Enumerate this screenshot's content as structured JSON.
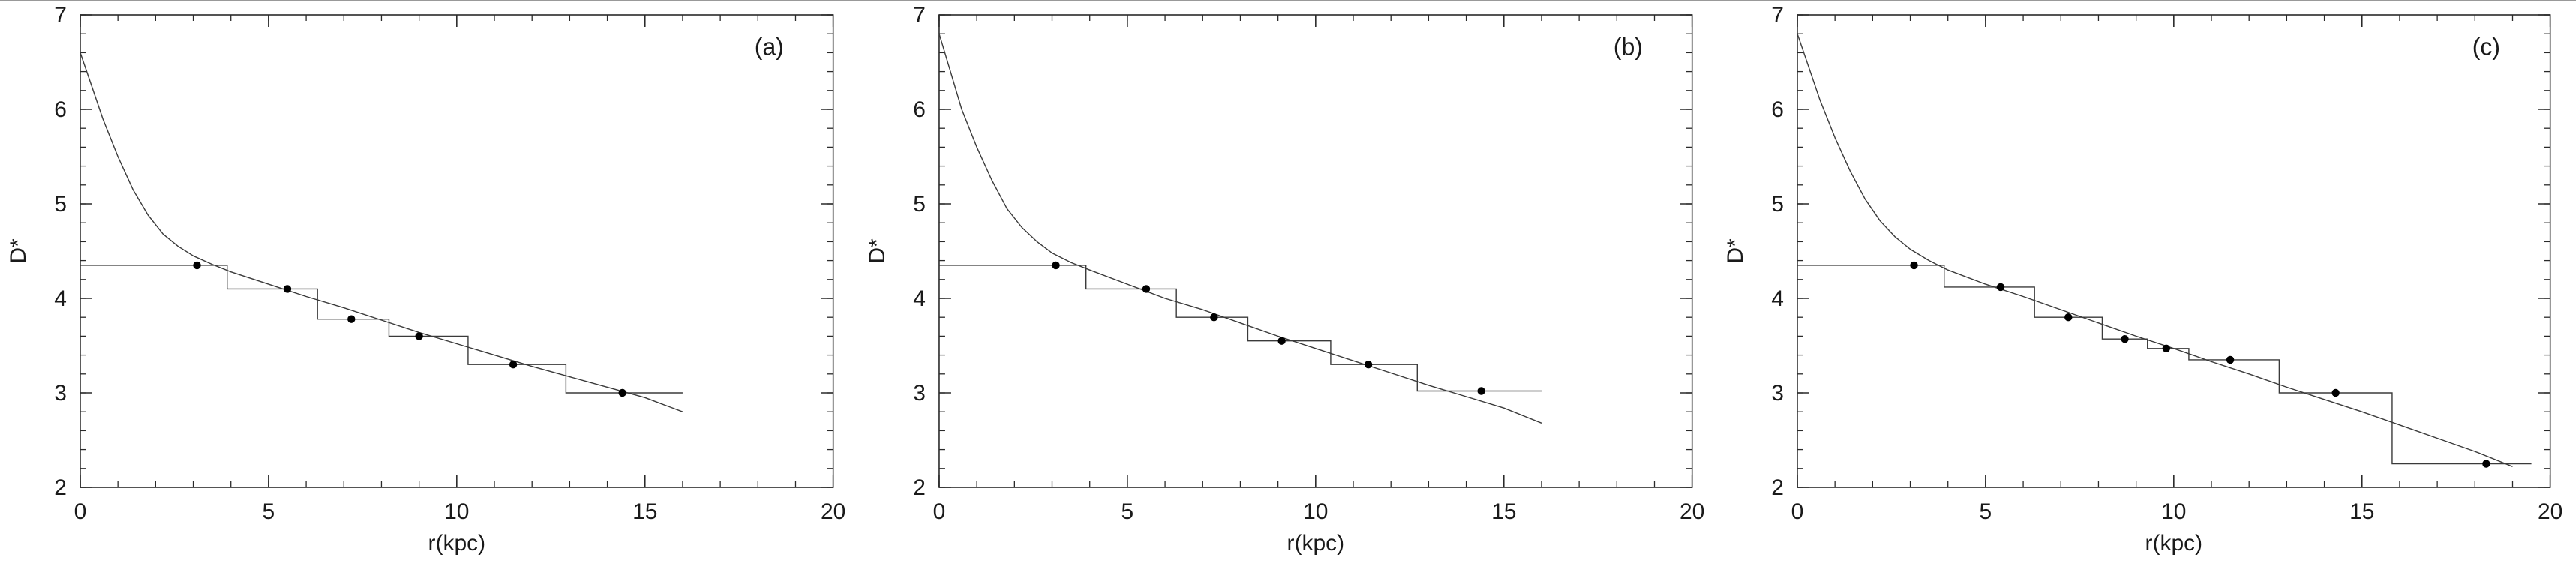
{
  "figure": {
    "background": "#ffffff",
    "border_top_color": "#999999",
    "axis_color": "#2a2a2a",
    "line_color": "#3a3a3a",
    "point_color": "#000000"
  },
  "chart_data": [
    {
      "type": "line",
      "panel_label": "(a)",
      "xlabel": "r(kpc)",
      "ylabel": "D*",
      "xlim": [
        0,
        20
      ],
      "ylim": [
        2,
        7
      ],
      "xticks": [
        0,
        5,
        10,
        15,
        20
      ],
      "yticks": [
        2,
        3,
        4,
        5,
        6,
        7
      ],
      "x_minor_step": 1,
      "y_minor_step": 0.2,
      "grid": false,
      "legend": "none",
      "series": [
        {
          "name": "smooth-model-curve",
          "type": "line",
          "x": [
            0,
            0.3,
            0.6,
            1.0,
            1.4,
            1.8,
            2.2,
            2.6,
            3.0,
            3.5,
            4.0,
            5.0,
            6.0,
            7.0,
            8.0,
            9.0,
            10.0,
            11.0,
            12.0,
            13.0,
            14.0,
            15.0,
            16.0
          ],
          "y": [
            6.6,
            6.25,
            5.9,
            5.5,
            5.15,
            4.88,
            4.68,
            4.55,
            4.45,
            4.36,
            4.28,
            4.15,
            4.02,
            3.9,
            3.77,
            3.64,
            3.52,
            3.4,
            3.28,
            3.17,
            3.06,
            2.95,
            2.8
          ]
        },
        {
          "name": "binned-step-function",
          "type": "step",
          "edges": [
            0,
            3.9,
            6.3,
            8.2,
            10.3,
            12.9,
            16.0
          ],
          "levels": [
            4.35,
            4.1,
            3.78,
            3.6,
            3.3,
            3.0
          ]
        },
        {
          "name": "binned-data-points",
          "type": "scatter",
          "x": [
            3.1,
            5.5,
            7.2,
            9.0,
            11.5,
            14.4
          ],
          "y": [
            4.35,
            4.1,
            3.78,
            3.6,
            3.3,
            3.0
          ]
        }
      ]
    },
    {
      "type": "line",
      "panel_label": "(b)",
      "xlabel": "r(kpc)",
      "ylabel": "D*",
      "xlim": [
        0,
        20
      ],
      "ylim": [
        2,
        7
      ],
      "xticks": [
        0,
        5,
        10,
        15,
        20
      ],
      "yticks": [
        2,
        3,
        4,
        5,
        6,
        7
      ],
      "x_minor_step": 1,
      "y_minor_step": 0.2,
      "grid": false,
      "legend": "none",
      "series": [
        {
          "name": "smooth-model-curve",
          "type": "line",
          "x": [
            0,
            0.3,
            0.6,
            1.0,
            1.4,
            1.8,
            2.2,
            2.6,
            3.0,
            3.5,
            4.0,
            5.0,
            6.0,
            7.0,
            8.0,
            9.0,
            10.0,
            11.0,
            12.0,
            13.0,
            14.0,
            15.0,
            16.0
          ],
          "y": [
            6.8,
            6.4,
            6.0,
            5.6,
            5.25,
            4.95,
            4.75,
            4.6,
            4.48,
            4.38,
            4.3,
            4.15,
            4.0,
            3.88,
            3.74,
            3.6,
            3.47,
            3.34,
            3.21,
            3.08,
            2.96,
            2.84,
            2.68
          ]
        },
        {
          "name": "binned-step-function",
          "type": "step",
          "edges": [
            0,
            3.9,
            6.3,
            8.2,
            10.4,
            12.7,
            16.0
          ],
          "levels": [
            4.35,
            4.1,
            3.8,
            3.55,
            3.3,
            3.02
          ]
        },
        {
          "name": "binned-data-points",
          "type": "scatter",
          "x": [
            3.1,
            5.5,
            7.3,
            9.1,
            11.4,
            14.4
          ],
          "y": [
            4.35,
            4.1,
            3.8,
            3.55,
            3.3,
            3.02
          ]
        }
      ]
    },
    {
      "type": "line",
      "panel_label": "(c)",
      "xlabel": "r(kpc)",
      "ylabel": "D*",
      "xlim": [
        0,
        20
      ],
      "ylim": [
        2,
        7
      ],
      "xticks": [
        0,
        5,
        10,
        15,
        20
      ],
      "yticks": [
        2,
        3,
        4,
        5,
        6,
        7
      ],
      "x_minor_step": 1,
      "y_minor_step": 0.2,
      "grid": false,
      "legend": "none",
      "series": [
        {
          "name": "smooth-model-curve",
          "type": "line",
          "x": [
            0,
            0.3,
            0.6,
            1.0,
            1.4,
            1.8,
            2.2,
            2.6,
            3.0,
            3.5,
            4.0,
            5.0,
            6.0,
            7.0,
            8.0,
            9.0,
            10.0,
            11.0,
            12.0,
            13.0,
            14.0,
            15.0,
            16.0,
            17.0,
            18.0,
            19.0
          ],
          "y": [
            6.8,
            6.45,
            6.1,
            5.7,
            5.35,
            5.05,
            4.82,
            4.65,
            4.52,
            4.4,
            4.3,
            4.15,
            4.02,
            3.88,
            3.74,
            3.6,
            3.47,
            3.33,
            3.2,
            3.06,
            2.93,
            2.8,
            2.66,
            2.52,
            2.38,
            2.22
          ]
        },
        {
          "name": "binned-step-function",
          "type": "step",
          "edges": [
            0,
            3.9,
            6.3,
            8.1,
            9.3,
            10.4,
            12.8,
            15.8,
            19.5
          ],
          "levels": [
            4.35,
            4.12,
            3.8,
            3.57,
            3.47,
            3.35,
            3.0,
            2.25
          ]
        },
        {
          "name": "binned-data-points",
          "type": "scatter",
          "x": [
            3.1,
            5.4,
            7.2,
            8.7,
            9.8,
            11.5,
            14.3,
            18.3
          ],
          "y": [
            4.35,
            4.12,
            3.8,
            3.57,
            3.47,
            3.35,
            3.0,
            2.25
          ]
        }
      ]
    }
  ]
}
